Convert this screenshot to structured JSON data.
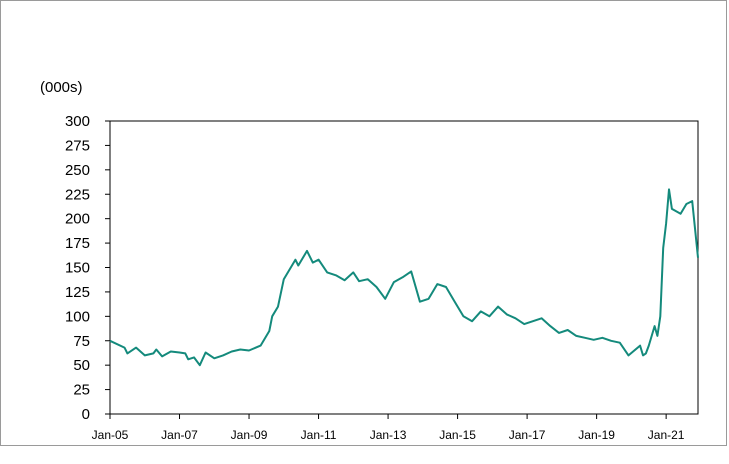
{
  "chart_data": {
    "type": "line",
    "title": "",
    "ylabel": "(000s)",
    "xlabel": "",
    "ylim": [
      0,
      300
    ],
    "xlim": [
      "2005-01",
      "2021-12"
    ],
    "yticks": [
      "0",
      "25",
      "50",
      "75",
      "100",
      "125",
      "150",
      "175",
      "200",
      "225",
      "250",
      "275",
      "300"
    ],
    "xticks": [
      "Jan-05",
      "Jan-07",
      "Jan-09",
      "Jan-11",
      "Jan-13",
      "Jan-15",
      "Jan-17",
      "Jan-19",
      "Jan-21"
    ],
    "grid": false,
    "line_color": "#148A7C",
    "series": [
      {
        "x": [
          "2005-01",
          "2005-06",
          "2005-07",
          "2005-10",
          "2006-01",
          "2006-04",
          "2006-05",
          "2006-07",
          "2006-10",
          "2007-01",
          "2007-03",
          "2007-04",
          "2007-06",
          "2007-08",
          "2007-10",
          "2008-01",
          "2008-04",
          "2008-07",
          "2008-10",
          "2009-01",
          "2009-05",
          "2009-08",
          "2009-09",
          "2009-11",
          "2010-01",
          "2010-05",
          "2010-06",
          "2010-09",
          "2010-11",
          "2011-01",
          "2011-04",
          "2011-07",
          "2011-10",
          "2012-01",
          "2012-03",
          "2012-06",
          "2012-09",
          "2012-12",
          "2013-03",
          "2013-06",
          "2013-09",
          "2013-12",
          "2014-03",
          "2014-06",
          "2014-09",
          "2014-12",
          "2015-03",
          "2015-06",
          "2015-09",
          "2015-12",
          "2016-03",
          "2016-06",
          "2016-09",
          "2016-12",
          "2017-03",
          "2017-06",
          "2017-09",
          "2017-12",
          "2018-03",
          "2018-06",
          "2018-09",
          "2018-12",
          "2019-03",
          "2019-06",
          "2019-09",
          "2019-12",
          "2020-02",
          "2020-04",
          "2020-05",
          "2020-06",
          "2020-07",
          "2020-09",
          "2020-10",
          "2020-11",
          "2020-12",
          "2021-01",
          "2021-02",
          "2021-03",
          "2021-06",
          "2021-08",
          "2021-10",
          "2021-12"
        ],
        "y": [
          75,
          68,
          62,
          68,
          60,
          62,
          66,
          59,
          64,
          63,
          62,
          56,
          58,
          50,
          63,
          57,
          60,
          64,
          66,
          65,
          70,
          85,
          100,
          110,
          138,
          158,
          152,
          167,
          155,
          158,
          145,
          142,
          137,
          145,
          136,
          138,
          130,
          118,
          135,
          140,
          146,
          115,
          118,
          133,
          130,
          115,
          100,
          95,
          105,
          100,
          110,
          102,
          98,
          92,
          95,
          98,
          90,
          83,
          86,
          80,
          78,
          76,
          78,
          75,
          73,
          60,
          65,
          70,
          60,
          62,
          70,
          90,
          80,
          100,
          170,
          195,
          230,
          210,
          205,
          215,
          218,
          160
        ]
      }
    ]
  }
}
